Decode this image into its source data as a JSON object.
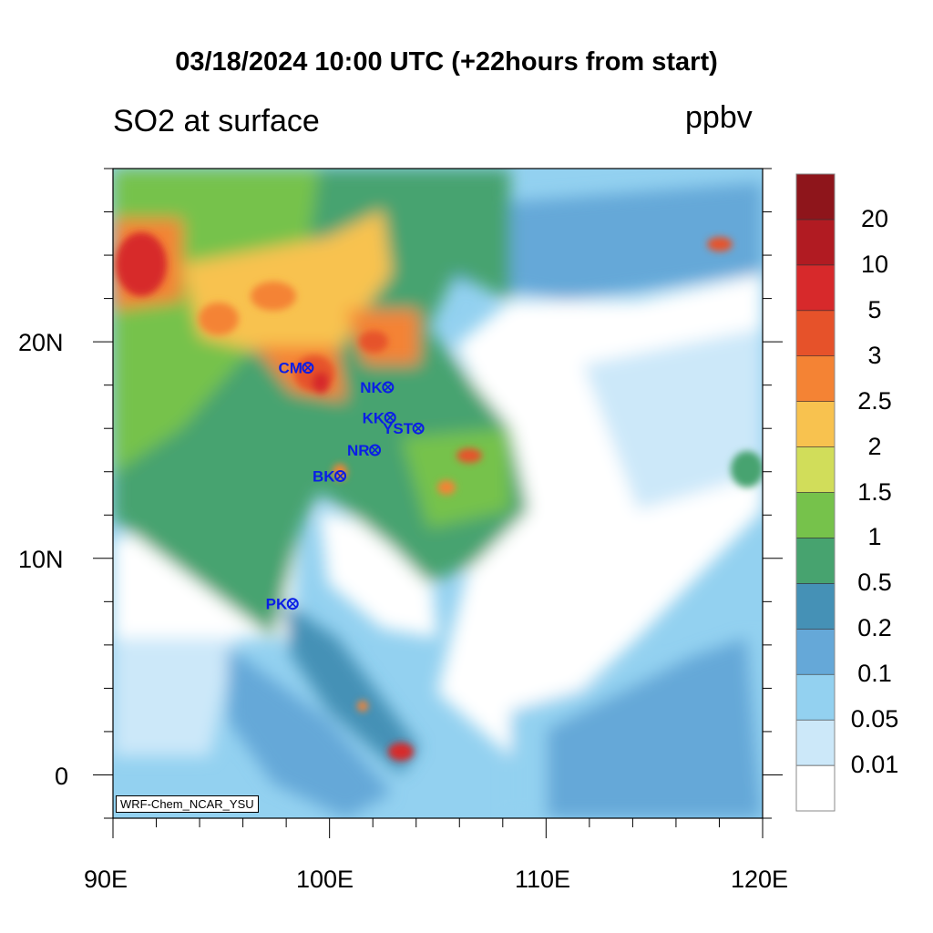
{
  "title": "03/18/2024 10:00 UTC (+22hours from start)",
  "subtitle": "SO2 at surface",
  "units": "ppbv",
  "credit": "WRF-Chem_NCAR_YSU",
  "map": {
    "lon_range": [
      90,
      120
    ],
    "lat_range": [
      -2,
      28
    ],
    "x_ticks": [
      {
        "value": 90,
        "label": "90E"
      },
      {
        "value": 100,
        "label": "100E"
      },
      {
        "value": 110,
        "label": "110E"
      },
      {
        "value": 120,
        "label": "120E"
      }
    ],
    "y_ticks": [
      {
        "value": 20,
        "label": "20N"
      },
      {
        "value": 10,
        "label": "10N"
      },
      {
        "value": 0,
        "label": "0"
      }
    ],
    "stations": [
      {
        "label": "CM",
        "lon": 99.0,
        "lat": 18.8
      },
      {
        "label": "NK",
        "lon": 102.7,
        "lat": 17.9
      },
      {
        "label": "KK",
        "lon": 102.8,
        "lat": 16.5
      },
      {
        "label": "YST",
        "lon": 104.1,
        "lat": 16.0
      },
      {
        "label": "NR",
        "lon": 102.1,
        "lat": 15.0
      },
      {
        "label": "BK",
        "lon": 100.5,
        "lat": 13.8
      },
      {
        "label": "PK",
        "lon": 98.3,
        "lat": 7.9
      }
    ],
    "station_color": "#0a1ee6"
  },
  "colorbar": {
    "levels": [
      "0.01",
      "0.05",
      "0.1",
      "0.2",
      "0.5",
      "1",
      "1.5",
      "2",
      "2.5",
      "3",
      "5",
      "10",
      "20"
    ],
    "colors": [
      "#ffffff",
      "#cce8f9",
      "#93d1f0",
      "#65a8d8",
      "#4591b6",
      "#47a36f",
      "#76c24b",
      "#d1dd5a",
      "#f8c24f",
      "#f48334",
      "#e6522a",
      "#d7292b",
      "#b11b22",
      "#8e151b"
    ]
  }
}
